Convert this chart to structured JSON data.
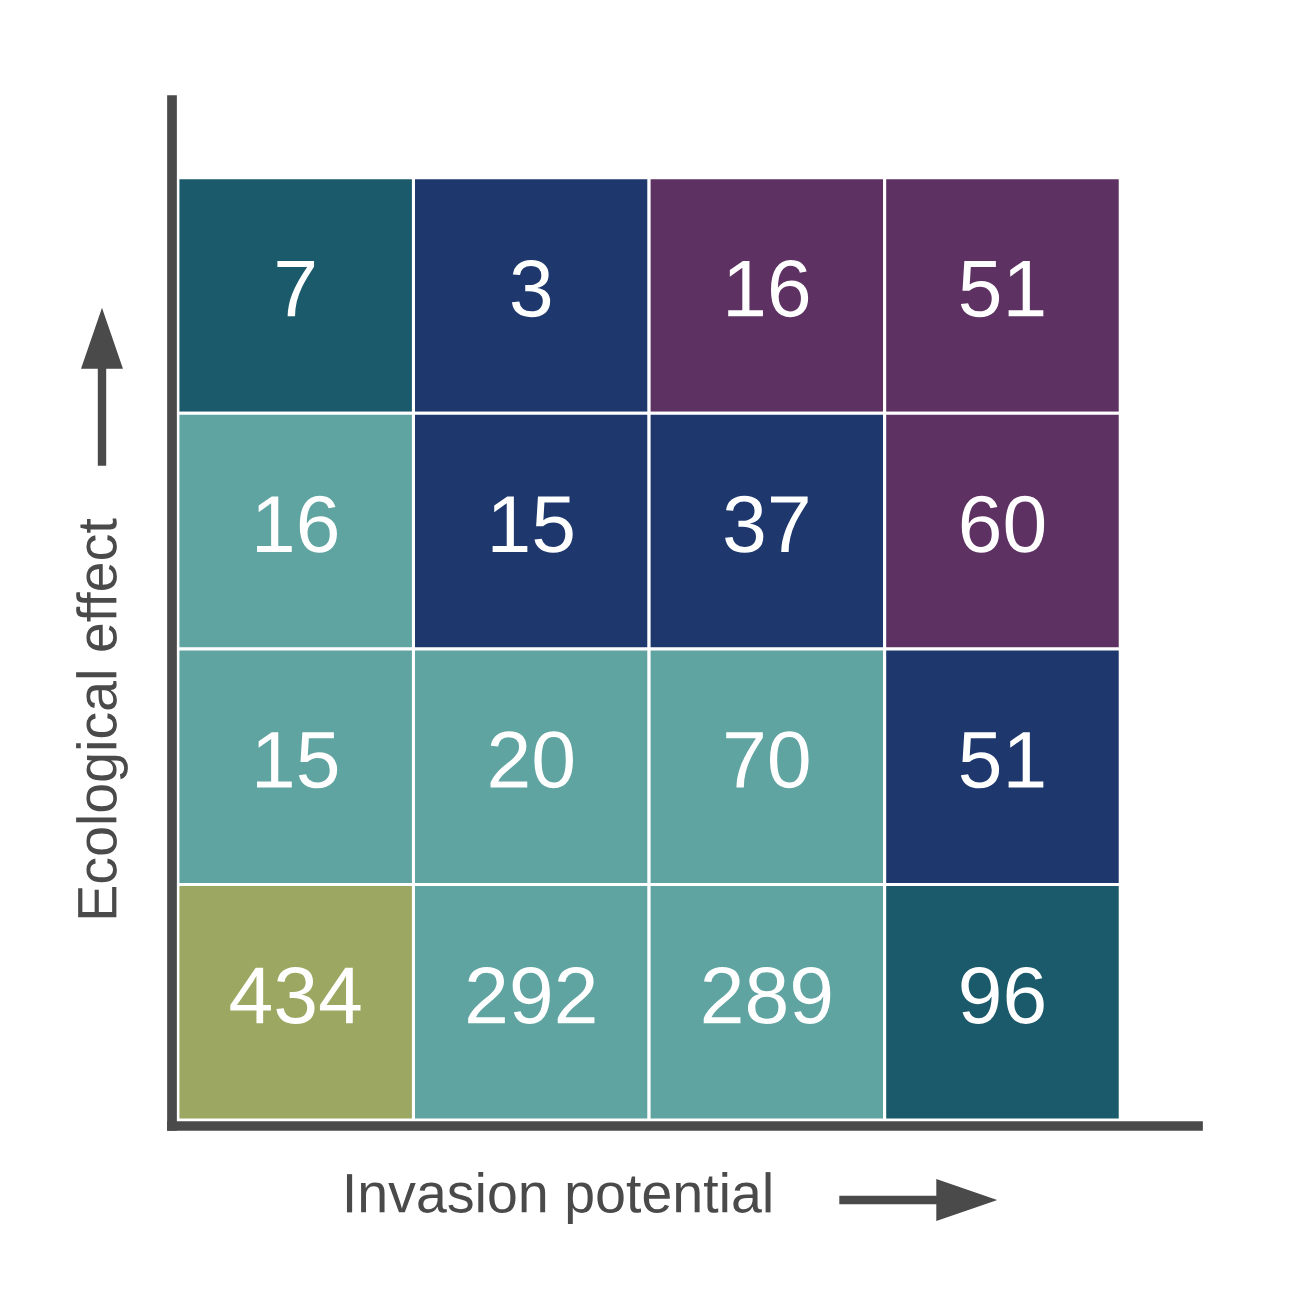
{
  "chart_data": {
    "type": "heatmap",
    "xlabel": "Invasion potential",
    "ylabel": "Ecological effect",
    "categories": [
      null,
      null,
      null,
      null
    ],
    "y_categories": [
      null,
      null,
      null,
      null
    ],
    "cells": [
      [
        7,
        3,
        16,
        51
      ],
      [
        16,
        15,
        37,
        60
      ],
      [
        15,
        20,
        70,
        51
      ],
      [
        434,
        292,
        289,
        96
      ]
    ],
    "colors": [
      [
        "#1b5a6b",
        "#1e386e",
        "#5e3163",
        "#5e3163"
      ],
      [
        "#5fa4a1",
        "#1e386e",
        "#1e386e",
        "#5e3163"
      ],
      [
        "#5fa4a1",
        "#5fa4a1",
        "#5fa4a1",
        "#1e386e"
      ],
      [
        "#9ca862",
        "#5fa4a1",
        "#5fa4a1",
        "#1b5a6b"
      ]
    ],
    "data_labels": true
  }
}
